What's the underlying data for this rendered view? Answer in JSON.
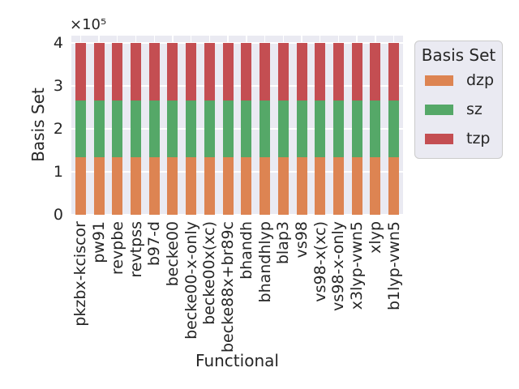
{
  "figure": {
    "background": "#ffffff",
    "plot_background": "#eaeaf2",
    "grid_color": "#ffffff",
    "text_color": "#262626"
  },
  "y_axis": {
    "label": "Basis Set",
    "offset_text": "×10⁵",
    "ticks": [
      "0",
      "1",
      "2",
      "3",
      "4"
    ],
    "tick_interval": 100000
  },
  "x_axis": {
    "label": "Functional"
  },
  "legend": {
    "title": "Basis Set",
    "items": [
      {
        "label": "dzp",
        "color": "#dd8452"
      },
      {
        "label": "sz",
        "color": "#55a868"
      },
      {
        "label": "tzp",
        "color": "#c44e52"
      }
    ]
  },
  "chart_data": {
    "type": "bar",
    "stacked": true,
    "title": "",
    "xlabel": "Functional",
    "ylabel": "Basis Set",
    "ylim": [
      0,
      417000
    ],
    "grid": true,
    "legend_position": "outside upper right",
    "categories": [
      "pkzbx-kciscor",
      "pw91",
      "revpbe",
      "revtpss",
      "b97-d",
      "becke00",
      "becke00-x-only",
      "becke00x(xc)",
      "becke88x+br89c",
      "bhandh",
      "bhandhlyp",
      "blap3",
      "vs98",
      "vs98-x(xc)",
      "vs98-x-only",
      "x3lyp-vwn5",
      "xlyp",
      "b1lyp-vwn5"
    ],
    "series": [
      {
        "name": "dzp",
        "color": "#dd8452",
        "values": [
          133333,
          133333,
          133333,
          133333,
          133333,
          133333,
          133333,
          133333,
          133333,
          133333,
          133333,
          133333,
          133333,
          133333,
          133333,
          133333,
          133333,
          133333
        ]
      },
      {
        "name": "sz",
        "color": "#55a868",
        "values": [
          133333,
          133333,
          133333,
          133333,
          133333,
          133333,
          133333,
          133333,
          133333,
          133333,
          133333,
          133333,
          133333,
          133333,
          133333,
          133333,
          133333,
          133333
        ]
      },
      {
        "name": "tzp",
        "color": "#c44e52",
        "values": [
          133334,
          133334,
          133334,
          133334,
          133334,
          133334,
          133334,
          133334,
          133334,
          133334,
          133334,
          133334,
          133334,
          133334,
          133334,
          133334,
          133334,
          133334
        ]
      }
    ]
  }
}
